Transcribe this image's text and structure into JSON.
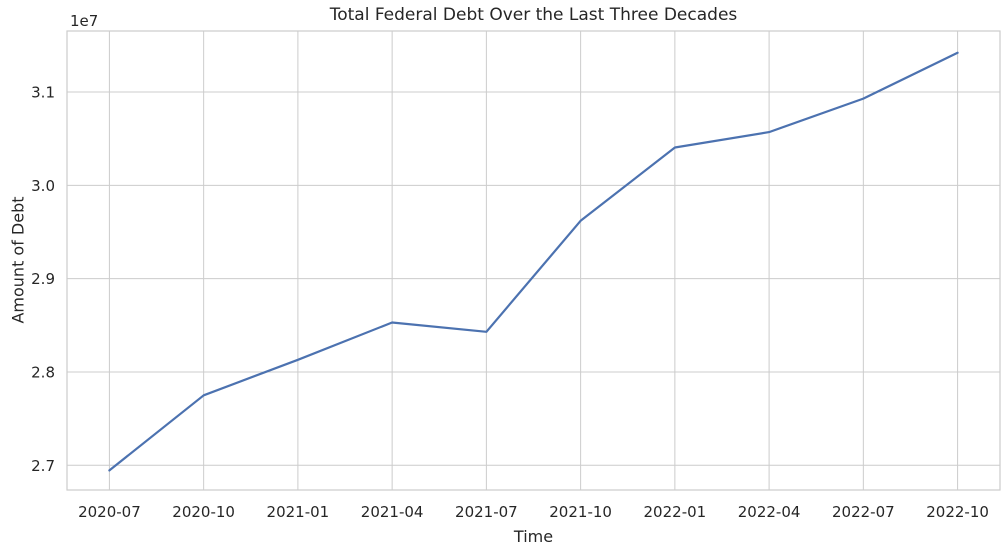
{
  "chart_data": {
    "type": "line",
    "title": "Total Federal Debt Over the Last Three Decades",
    "xlabel": "Time",
    "ylabel": "Amount of Debt",
    "y_offset_label": "1e7",
    "categories": [
      "2020-07",
      "2020-10",
      "2021-01",
      "2021-04",
      "2021-07",
      "2021-10",
      "2022-01",
      "2022-04",
      "2022-07",
      "2022-10"
    ],
    "values": [
      26945000,
      27750000,
      28130000,
      28530000,
      28430000,
      29620000,
      30405000,
      30570000,
      30930000,
      31420000
    ],
    "yticks": [
      27000000,
      28000000,
      29000000,
      30000000,
      31000000
    ],
    "ytick_labels": [
      "2.7",
      "2.8",
      "2.9",
      "3.0",
      "3.1"
    ],
    "ylim": [
      26735000,
      31654000
    ],
    "xlim_index": [
      -0.45,
      9.45
    ],
    "grid": true,
    "legend_position": "none",
    "colors": {
      "line": "#4C72B0",
      "grid": "#CCCCCC",
      "spine": "#CCCCCC",
      "text": "#262626",
      "background": "#FFFFFF"
    }
  }
}
